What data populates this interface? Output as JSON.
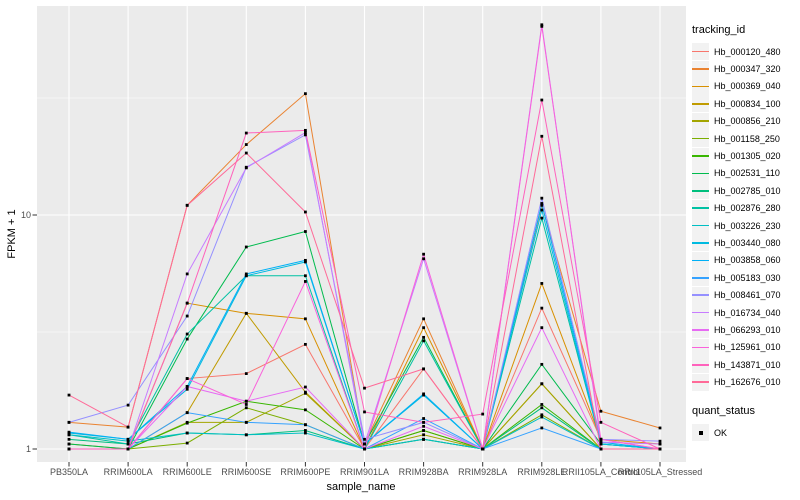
{
  "colors": {
    "background": "#FFFFFF",
    "panel": "#EBEBEB",
    "grid": "#FFFFFF",
    "axis_text": "#4D4D4D",
    "tick_mark": "#333333",
    "point": "#000000",
    "legend_key": "#F2F2F2"
  },
  "chart_data": {
    "type": "line",
    "title": "",
    "xlabel": "sample_name",
    "ylabel": "FPKM + 1",
    "y_scale": "log10",
    "ylim": [
      0.93,
      80
    ],
    "grid": "white major/minor gridlines on gray panel",
    "legend_position": "right",
    "y_ticks": [
      {
        "label": "1",
        "value": 1
      },
      {
        "label": "10",
        "value": 10
      }
    ],
    "categories": [
      "PB350LA",
      "RRIM600LA",
      "RRIM600LE",
      "RRIM600SE",
      "RRIM600PE",
      "RRIM901LA",
      "RRIM928BA",
      "RRIM928LA",
      "RRIM928LE",
      "RRII105LA_Control",
      "RRII105LA_Stressed"
    ],
    "legend_title": "tracking_id",
    "series": [
      {
        "name": "Hb_000120_480",
        "color": "#F8766D",
        "values": [
          1.0,
          1.0,
          2.0,
          2.1,
          2.8,
          1.0,
          2.2,
          1.0,
          4.0,
          1.1,
          1.0
        ]
      },
      {
        "name": "Hb_000347_320",
        "color": "#EA8331",
        "values": [
          1.3,
          1.24,
          11.0,
          20.0,
          33.0,
          1.05,
          3.6,
          1.0,
          11.0,
          1.45,
          1.23
        ]
      },
      {
        "name": "Hb_000369_040",
        "color": "#D89000",
        "values": [
          1.05,
          1.0,
          4.2,
          3.8,
          3.6,
          1.0,
          3.3,
          1.0,
          5.1,
          1.1,
          1.05
        ]
      },
      {
        "name": "Hb_000834_100",
        "color": "#C09B00",
        "values": [
          1.0,
          1.0,
          1.43,
          3.8,
          1.75,
          1.0,
          1.2,
          1.0,
          1.9,
          1.0,
          1.0
        ]
      },
      {
        "name": "Hb_000856_210",
        "color": "#A3A500",
        "values": [
          1.0,
          1.0,
          1.3,
          1.3,
          1.73,
          1.0,
          1.15,
          1.0,
          1.9,
          1.0,
          1.0
        ]
      },
      {
        "name": "Hb_001158_250",
        "color": "#7CAE00",
        "values": [
          1.0,
          1.0,
          1.06,
          1.5,
          1.27,
          1.0,
          1.1,
          1.0,
          1.4,
          1.0,
          1.0
        ]
      },
      {
        "name": "Hb_001305_020",
        "color": "#39B600",
        "values": [
          1.0,
          1.0,
          1.29,
          1.6,
          1.47,
          1.0,
          1.2,
          1.0,
          1.55,
          1.0,
          1.0
        ]
      },
      {
        "name": "Hb_002531_110",
        "color": "#00BB4E",
        "values": [
          1.05,
          1.0,
          2.95,
          7.3,
          8.5,
          1.05,
          3.0,
          1.0,
          2.3,
          1.05,
          1.0
        ]
      },
      {
        "name": "Hb_002785_010",
        "color": "#00BF7D",
        "values": [
          1.1,
          1.05,
          1.17,
          1.15,
          1.2,
          1.0,
          1.1,
          1.0,
          1.5,
          1.0,
          1.0
        ]
      },
      {
        "name": "Hb_002876_280",
        "color": "#00C1A3",
        "values": [
          1.15,
          1.05,
          3.1,
          5.5,
          5.5,
          1.0,
          2.9,
          1.0,
          9.7,
          1.05,
          1.0
        ]
      },
      {
        "name": "Hb_003226_230",
        "color": "#00BFC4",
        "values": [
          1.15,
          1.08,
          1.17,
          1.15,
          1.17,
          1.0,
          1.1,
          1.0,
          1.37,
          1.0,
          1.0
        ]
      },
      {
        "name": "Hb_003440_080",
        "color": "#00BAE0",
        "values": [
          1.17,
          1.1,
          1.8,
          5.5,
          6.3,
          1.05,
          1.7,
          1.0,
          10.5,
          1.05,
          1.0
        ]
      },
      {
        "name": "Hb_003858_060",
        "color": "#00B0F6",
        "values": [
          1.18,
          1.1,
          1.85,
          5.6,
          6.4,
          1.05,
          1.72,
          1.0,
          11.2,
          1.07,
          1.0
        ]
      },
      {
        "name": "Hb_005183_030",
        "color": "#35A2FF",
        "values": [
          1.0,
          1.0,
          1.43,
          1.3,
          1.27,
          1.0,
          1.35,
          1.0,
          1.23,
          1.0,
          1.0
        ]
      },
      {
        "name": "Hb_008461_070",
        "color": "#9590FF",
        "values": [
          1.3,
          1.54,
          3.7,
          16.0,
          22.0,
          1.1,
          1.3,
          1.0,
          11.8,
          1.1,
          1.08
        ]
      },
      {
        "name": "Hb_016734_040",
        "color": "#C77CFF",
        "values": [
          1.0,
          1.0,
          5.6,
          15.9,
          22.5,
          1.05,
          6.5,
          1.0,
          65.0,
          1.07,
          1.05
        ]
      },
      {
        "name": "Hb_066293_010",
        "color": "#E76BF3",
        "values": [
          1.0,
          1.0,
          1.85,
          1.6,
          1.84,
          1.0,
          1.25,
          1.0,
          3.3,
          1.0,
          1.0
        ]
      },
      {
        "name": "Hb_125961_010",
        "color": "#FA62DB",
        "values": [
          1.0,
          1.0,
          2.0,
          1.55,
          5.2,
          1.0,
          6.8,
          1.0,
          64.0,
          1.1,
          1.0
        ]
      },
      {
        "name": "Hb_143871_010",
        "color": "#FF62BC",
        "values": [
          1.0,
          1.0,
          4.2,
          22.4,
          23.0,
          1.44,
          1.3,
          1.41,
          31.0,
          1.3,
          1.0
        ]
      },
      {
        "name": "Hb_162676_010",
        "color": "#FF6A98",
        "values": [
          1.7,
          1.24,
          11.0,
          18.4,
          10.3,
          1.82,
          2.2,
          1.0,
          21.7,
          1.0,
          1.0
        ]
      }
    ],
    "quant_legend": {
      "title": "quant_status",
      "items": [
        {
          "label": "OK",
          "marker": "black-square"
        }
      ]
    }
  }
}
